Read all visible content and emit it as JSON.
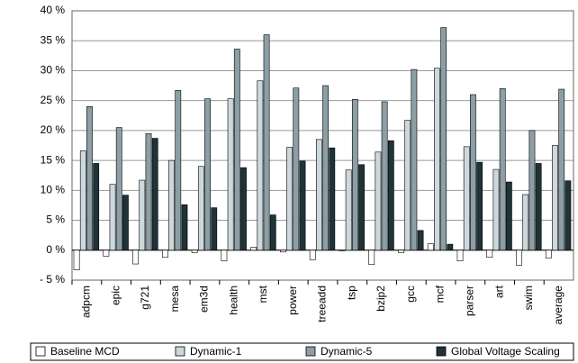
{
  "chart_data": {
    "type": "bar",
    "categories": [
      "adpcm",
      "epic",
      "g721",
      "mesa",
      "em3d",
      "health",
      "mst",
      "power",
      "treeadd",
      "tsp",
      "bzip2",
      "gcc",
      "mcf",
      "parser",
      "art",
      "swim",
      "average"
    ],
    "series": [
      {
        "name": "Baseline MCD",
        "color": "#ffffff",
        "values": [
          -3.3,
          -1.0,
          -2.3,
          -1.2,
          -0.4,
          -1.8,
          0.5,
          -0.3,
          -1.6,
          -0.1,
          -2.4,
          -0.4,
          1.1,
          -1.8,
          -1.2,
          -2.5,
          -1.3
        ]
      },
      {
        "name": "Dynamic-1",
        "color": "#cdd8dc",
        "values": [
          16.6,
          11.0,
          11.7,
          15.0,
          14.0,
          25.3,
          28.3,
          17.2,
          18.5,
          13.4,
          16.4,
          21.7,
          30.4,
          17.3,
          13.5,
          9.3,
          17.5
        ]
      },
      {
        "name": "Dynamic-5",
        "color": "#8c9ea6",
        "values": [
          24.0,
          20.5,
          19.5,
          26.7,
          25.3,
          33.6,
          36.0,
          27.1,
          27.5,
          25.2,
          24.8,
          30.2,
          37.2,
          26.0,
          27.0,
          20.0,
          26.9
        ]
      },
      {
        "name": "Global Voltage Scaling",
        "color": "#1f3338",
        "values": [
          14.5,
          9.2,
          18.7,
          7.6,
          7.1,
          13.8,
          5.9,
          14.9,
          17.1,
          14.3,
          18.3,
          3.3,
          1.0,
          14.7,
          11.4,
          14.5,
          11.6
        ]
      }
    ],
    "ylim": [
      -5,
      40
    ],
    "yticks": [
      {
        "value": -5,
        "label": "- 5 %"
      },
      {
        "value": 0,
        "label": "0 %"
      },
      {
        "value": 5,
        "label": "5 %"
      },
      {
        "value": 10,
        "label": "10 %"
      },
      {
        "value": 15,
        "label": "15 %"
      },
      {
        "value": 20,
        "label": "20 %"
      },
      {
        "value": 25,
        "label": "25 %"
      },
      {
        "value": 30,
        "label": "30 %"
      },
      {
        "value": 35,
        "label": "35 %"
      },
      {
        "value": 40,
        "label": "40 %"
      }
    ],
    "grid": true
  }
}
